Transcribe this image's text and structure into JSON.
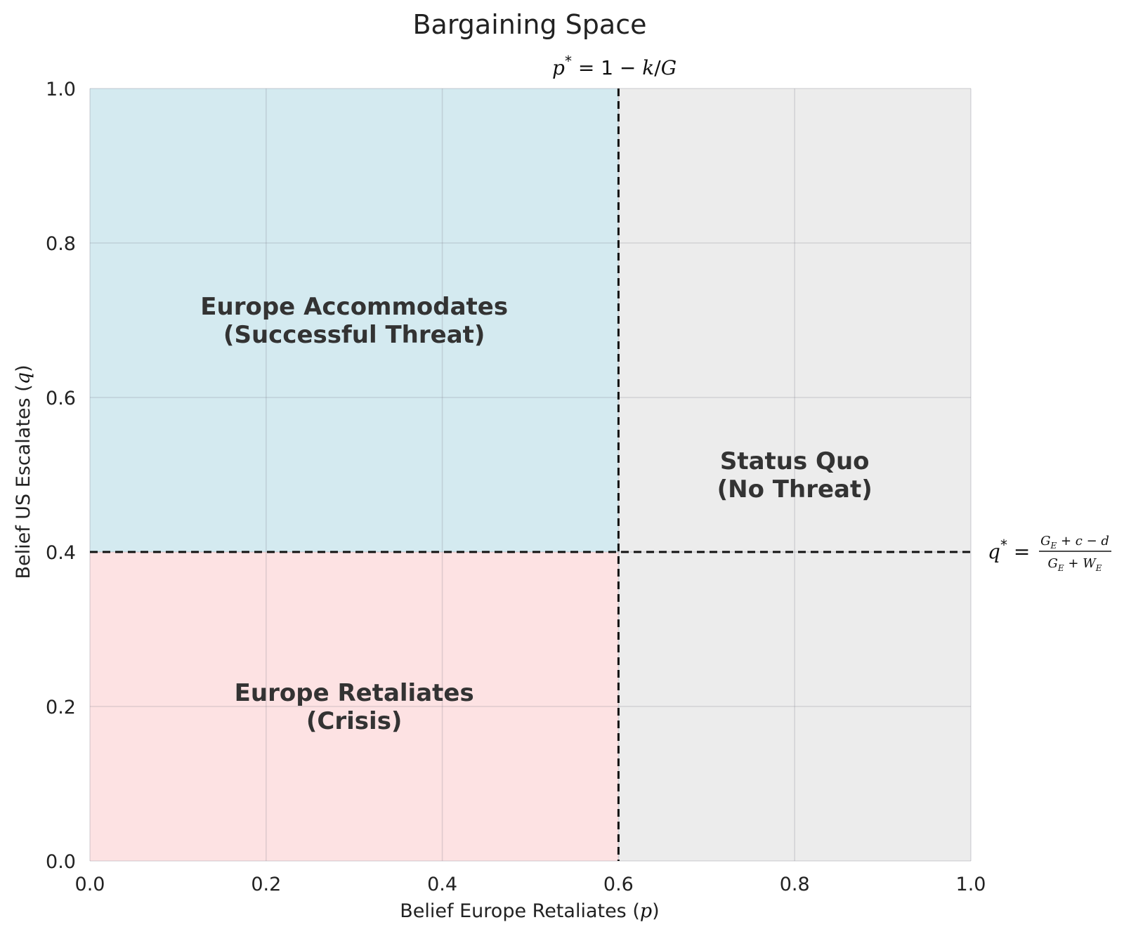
{
  "chart_data": {
    "type": "area",
    "title": "Bargaining Space",
    "xlabel_text": "Belief Europe Retaliates (",
    "xlabel_var": "p",
    "xlabel_close": ")",
    "ylabel_text": "Belief US Escalates (",
    "ylabel_var": "q",
    "ylabel_close": ")",
    "xlim": [
      0.0,
      1.0
    ],
    "ylim": [
      0.0,
      1.0
    ],
    "x_ticks": [
      0.0,
      0.2,
      0.4,
      0.6,
      0.8,
      1.0
    ],
    "y_ticks": [
      0.0,
      0.2,
      0.4,
      0.6,
      0.8,
      1.0
    ],
    "x_tick_labels": [
      "0.0",
      "0.2",
      "0.4",
      "0.6",
      "0.8",
      "1.0"
    ],
    "y_tick_labels": [
      "0.0",
      "0.2",
      "0.4",
      "0.6",
      "0.8",
      "1.0"
    ],
    "grid": true,
    "p_star": 0.6,
    "q_star": 0.4,
    "p_star_label": "p* = 1 − k/G",
    "q_star_label": "q* = (G_E + c − d)/(G_E + W_E)",
    "regions": [
      {
        "id": "accommodate",
        "x": [
          0.0,
          0.6
        ],
        "y": [
          0.4,
          1.0
        ],
        "color": "#d4eaf0",
        "label_lines": [
          "Europe Accommodates",
          "(Successful Threat)"
        ],
        "label_at": [
          0.3,
          0.7
        ]
      },
      {
        "id": "retaliate",
        "x": [
          0.0,
          0.6
        ],
        "y": [
          0.0,
          0.4
        ],
        "color": "#fde2e3",
        "label_lines": [
          "Europe Retaliates",
          "(Crisis)"
        ],
        "label_at": [
          0.3,
          0.2
        ]
      },
      {
        "id": "status-quo",
        "x": [
          0.6,
          1.0
        ],
        "y": [
          0.0,
          1.0
        ],
        "color": "#ececec",
        "label_lines": [
          "Status Quo",
          "(No Threat)"
        ],
        "label_at": [
          0.8,
          0.5
        ]
      }
    ]
  }
}
